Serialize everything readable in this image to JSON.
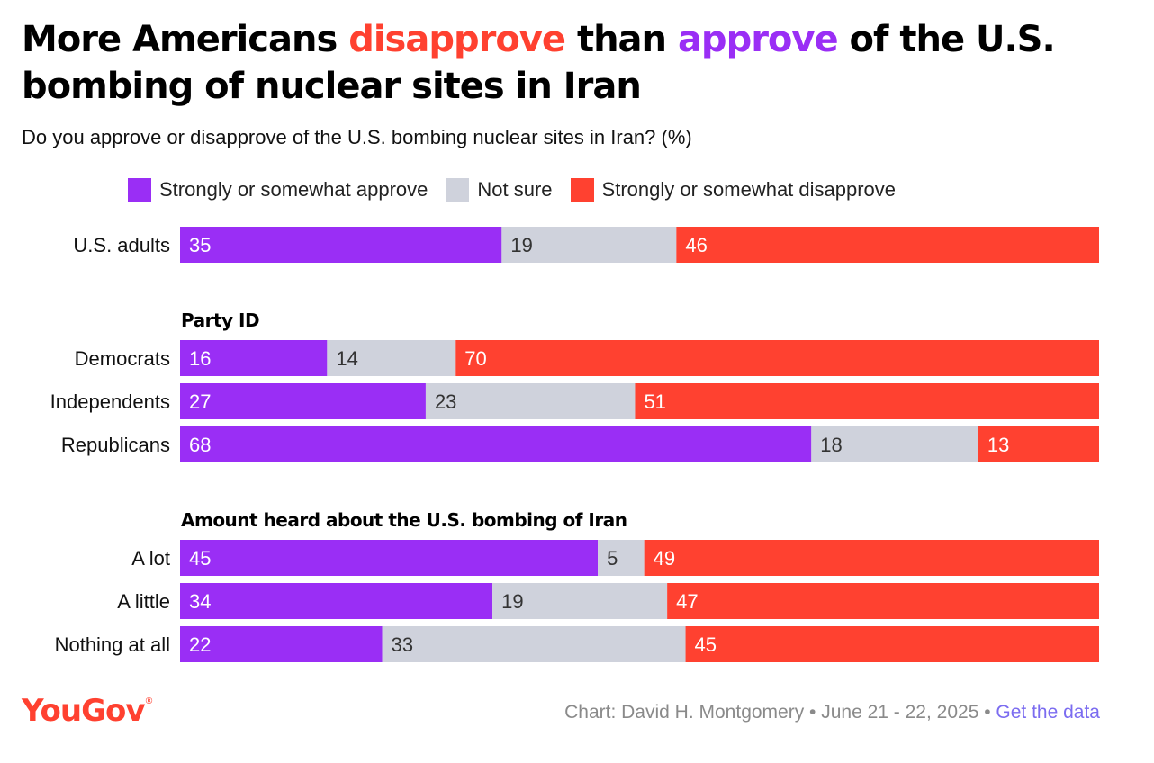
{
  "title": {
    "part1": "More Americans ",
    "highlight_neg": "disapprove",
    "part2": " than ",
    "highlight_pos": "approve",
    "part3": " of the U.S. bombing of nuclear sites in Iran"
  },
  "subtitle": "Do you approve or disapprove of the U.S. bombing nuclear sites in Iran? (%)",
  "legend": [
    {
      "label": "Strongly or somewhat approve",
      "color": "#9a2ef5"
    },
    {
      "label": "Not sure",
      "color": "#cfd2dc"
    },
    {
      "label": "Strongly or somewhat disapprove",
      "color": "#ff4130"
    }
  ],
  "chart_data": {
    "type": "bar",
    "orientation": "horizontal",
    "stacked": true,
    "series_names": [
      "Strongly or somewhat approve",
      "Not sure",
      "Strongly or somewhat disapprove"
    ],
    "colors": [
      "#9a2ef5",
      "#cfd2dc",
      "#ff4130"
    ],
    "groups": [
      {
        "heading": "",
        "rows": [
          {
            "label": "U.S. adults",
            "values": [
              35,
              19,
              46
            ]
          }
        ]
      },
      {
        "heading": "Party ID",
        "rows": [
          {
            "label": "Democrats",
            "values": [
              16,
              14,
              70
            ]
          },
          {
            "label": "Independents",
            "values": [
              27,
              23,
              51
            ]
          },
          {
            "label": "Republicans",
            "values": [
              68,
              18,
              13
            ]
          }
        ]
      },
      {
        "heading": "Amount heard about the U.S. bombing of Iran",
        "rows": [
          {
            "label": "A lot",
            "values": [
              45,
              5,
              49
            ]
          },
          {
            "label": "A little",
            "values": [
              34,
              19,
              47
            ]
          },
          {
            "label": "Nothing at all",
            "values": [
              22,
              33,
              45
            ]
          }
        ]
      }
    ]
  },
  "footer": {
    "logo": "YouGov",
    "logo_mark": "®",
    "credit": "Chart: David H. Montgomery • June 21 - 22, 2025 • ",
    "link": "Get the data"
  }
}
